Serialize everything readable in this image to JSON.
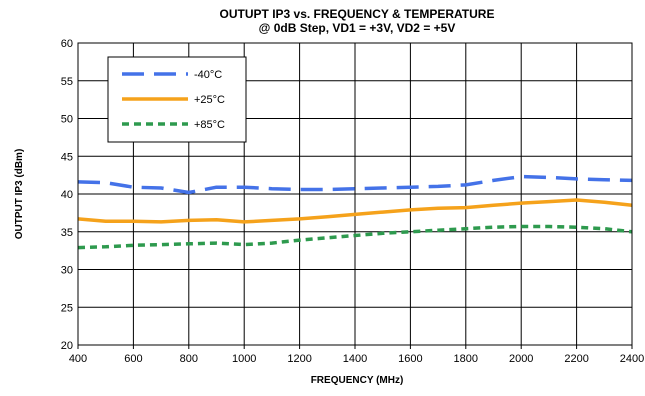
{
  "chart_data": {
    "type": "line",
    "title": "OUTUPT IP3 vs. FREQUENCY & TEMPERATURE",
    "subtitle": "@ 0dB Step, VD1 = +3V, VD2 = +5V",
    "xlabel": "FREQUENCY (MHz)",
    "ylabel": "OUTPUT IP3 (dBm)",
    "xlim": [
      400,
      2400
    ],
    "ylim": [
      20,
      60
    ],
    "x_ticks": [
      400,
      600,
      800,
      1000,
      1200,
      1400,
      1600,
      1800,
      2000,
      2200,
      2400
    ],
    "y_ticks": [
      20,
      25,
      30,
      35,
      40,
      45,
      50,
      55,
      60
    ],
    "grid": true,
    "legend_position": "top-left",
    "x": [
      400,
      500,
      600,
      700,
      800,
      900,
      1000,
      1100,
      1200,
      1300,
      1400,
      1500,
      1600,
      1700,
      1800,
      1900,
      2000,
      2100,
      2200,
      2300,
      2400
    ],
    "series": [
      {
        "name": "-40°C",
        "color": "#4472e8",
        "style": "long-dash",
        "values": [
          41.6,
          41.5,
          40.9,
          40.8,
          40.2,
          40.9,
          40.9,
          40.7,
          40.6,
          40.6,
          40.7,
          40.8,
          40.9,
          41.0,
          41.2,
          41.8,
          42.3,
          42.2,
          42.0,
          41.9,
          41.8
        ]
      },
      {
        "name": "+25°C",
        "color": "#f5a21b",
        "style": "solid",
        "values": [
          36.7,
          36.4,
          36.4,
          36.3,
          36.5,
          36.6,
          36.3,
          36.5,
          36.7,
          37.0,
          37.3,
          37.6,
          37.9,
          38.1,
          38.2,
          38.5,
          38.8,
          39.0,
          39.2,
          38.9,
          38.5
        ]
      },
      {
        "name": "+85°C",
        "color": "#2e9a4e",
        "style": "short-dash",
        "values": [
          32.9,
          33.0,
          33.2,
          33.3,
          33.4,
          33.5,
          33.3,
          33.5,
          33.9,
          34.2,
          34.5,
          34.8,
          35.0,
          35.2,
          35.4,
          35.6,
          35.7,
          35.7,
          35.6,
          35.4,
          35.0
        ]
      }
    ]
  }
}
